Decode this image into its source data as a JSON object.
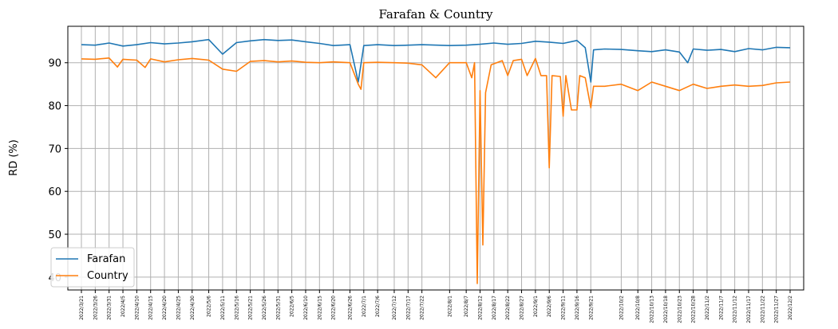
{
  "chart_data": {
    "type": "line",
    "title": "Farafan & Country",
    "xlabel": "",
    "ylabel": "RD (%)",
    "ylim": [
      37.0,
      98.5
    ],
    "yticks": [
      40,
      50,
      60,
      70,
      80,
      90
    ],
    "grid": true,
    "legend_position": "lower-left",
    "x_start_date": "2022/3/21",
    "x_end_date": "2022/12/2",
    "x_tick_labels": [
      "2022/3/21",
      "2022/3/26",
      "2022/3/31",
      "2022/4/5",
      "2022/4/10",
      "2022/4/15",
      "2022/4/20",
      "2022/4/25",
      "2022/4/30",
      "2022/5/6",
      "2022/5/11",
      "2022/5/16",
      "2022/5/21",
      "2022/5/26",
      "2022/5/31",
      "2022/6/5",
      "2022/6/10",
      "2022/6/15",
      "2022/6/20",
      "2022/6/26",
      "2022/7/1",
      "2022/7/6",
      "2022/7/12",
      "2022/7/17",
      "2022/7/22",
      "2022/8/1",
      "2022/8/7",
      "2022/8/12",
      "2022/8/17",
      "2022/8/22",
      "2022/8/27",
      "2022/9/1",
      "2022/9/6",
      "2022/9/11",
      "2022/9/16",
      "2022/9/21",
      "2022/10/2",
      "2022/10/8",
      "2022/10/13",
      "2022/10/18",
      "2022/10/23",
      "2022/10/28",
      "2022/11/2",
      "2022/11/7",
      "2022/11/12",
      "2022/11/17",
      "2022/11/22",
      "2022/11/27",
      "2022/12/2"
    ],
    "series": [
      {
        "name": "Farafan",
        "color": "#1f77b4",
        "points": [
          [
            "2022/3/21",
            94.2
          ],
          [
            "2022/3/26",
            94.1
          ],
          [
            "2022/3/31",
            94.6
          ],
          [
            "2022/4/5",
            93.9
          ],
          [
            "2022/4/10",
            94.2
          ],
          [
            "2022/4/15",
            94.7
          ],
          [
            "2022/4/20",
            94.4
          ],
          [
            "2022/4/25",
            94.6
          ],
          [
            "2022/4/30",
            94.9
          ],
          [
            "2022/5/6",
            95.4
          ],
          [
            "2022/5/11",
            92.0
          ],
          [
            "2022/5/16",
            94.7
          ],
          [
            "2022/5/21",
            95.1
          ],
          [
            "2022/5/26",
            95.4
          ],
          [
            "2022/5/31",
            95.2
          ],
          [
            "2022/6/5",
            95.3
          ],
          [
            "2022/6/10",
            94.9
          ],
          [
            "2022/6/15",
            94.5
          ],
          [
            "2022/6/20",
            94.0
          ],
          [
            "2022/6/26",
            94.2
          ],
          [
            "2022/6/29",
            85.5
          ],
          [
            "2022/7/1",
            94.0
          ],
          [
            "2022/7/6",
            94.2
          ],
          [
            "2022/7/12",
            94.0
          ],
          [
            "2022/7/17",
            94.1
          ],
          [
            "2022/7/22",
            94.2
          ],
          [
            "2022/8/1",
            94.0
          ],
          [
            "2022/8/7",
            94.1
          ],
          [
            "2022/8/12",
            94.3
          ],
          [
            "2022/8/17",
            94.6
          ],
          [
            "2022/8/22",
            94.3
          ],
          [
            "2022/8/27",
            94.5
          ],
          [
            "2022/9/1",
            95.0
          ],
          [
            "2022/9/6",
            94.8
          ],
          [
            "2022/9/11",
            94.5
          ],
          [
            "2022/9/16",
            95.2
          ],
          [
            "2022/9/19",
            93.5
          ],
          [
            "2022/9/21",
            85.5
          ],
          [
            "2022/9/22",
            93.0
          ],
          [
            "2022/9/26",
            93.2
          ],
          [
            "2022/10/2",
            93.1
          ],
          [
            "2022/10/8",
            92.8
          ],
          [
            "2022/10/13",
            92.6
          ],
          [
            "2022/10/18",
            93.0
          ],
          [
            "2022/10/23",
            92.5
          ],
          [
            "2022/10/26",
            90.0
          ],
          [
            "2022/10/28",
            93.2
          ],
          [
            "2022/11/2",
            92.9
          ],
          [
            "2022/11/7",
            93.1
          ],
          [
            "2022/11/12",
            92.6
          ],
          [
            "2022/11/17",
            93.3
          ],
          [
            "2022/11/22",
            93.0
          ],
          [
            "2022/11/27",
            93.6
          ],
          [
            "2022/12/2",
            93.5
          ]
        ]
      },
      {
        "name": "Country",
        "color": "#ff7f0e",
        "points": [
          [
            "2022/3/21",
            90.9
          ],
          [
            "2022/3/26",
            90.8
          ],
          [
            "2022/3/31",
            91.1
          ],
          [
            "2022/4/3",
            89.0
          ],
          [
            "2022/4/5",
            90.8
          ],
          [
            "2022/4/10",
            90.6
          ],
          [
            "2022/4/13",
            88.9
          ],
          [
            "2022/4/15",
            90.9
          ],
          [
            "2022/4/20",
            90.2
          ],
          [
            "2022/4/25",
            90.7
          ],
          [
            "2022/4/30",
            91.0
          ],
          [
            "2022/5/6",
            90.6
          ],
          [
            "2022/5/11",
            88.5
          ],
          [
            "2022/5/16",
            88.0
          ],
          [
            "2022/5/21",
            90.3
          ],
          [
            "2022/5/26",
            90.5
          ],
          [
            "2022/5/31",
            90.2
          ],
          [
            "2022/6/5",
            90.4
          ],
          [
            "2022/6/10",
            90.1
          ],
          [
            "2022/6/15",
            90.0
          ],
          [
            "2022/6/20",
            90.2
          ],
          [
            "2022/6/26",
            90.0
          ],
          [
            "2022/6/29",
            85.0
          ],
          [
            "2022/6/30",
            83.8
          ],
          [
            "2022/7/1",
            90.0
          ],
          [
            "2022/7/6",
            90.1
          ],
          [
            "2022/7/12",
            90.0
          ],
          [
            "2022/7/17",
            89.9
          ],
          [
            "2022/7/22",
            89.5
          ],
          [
            "2022/7/27",
            86.5
          ],
          [
            "2022/8/1",
            90.0
          ],
          [
            "2022/8/7",
            90.0
          ],
          [
            "2022/8/9",
            86.5
          ],
          [
            "2022/8/10",
            90.0
          ],
          [
            "2022/8/11",
            38.5
          ],
          [
            "2022/8/12",
            83.5
          ],
          [
            "2022/8/13",
            47.5
          ],
          [
            "2022/8/14",
            83.0
          ],
          [
            "2022/8/16",
            89.5
          ],
          [
            "2022/8/20",
            90.5
          ],
          [
            "2022/8/22",
            87.0
          ],
          [
            "2022/8/24",
            90.5
          ],
          [
            "2022/8/27",
            90.8
          ],
          [
            "2022/8/29",
            87.0
          ],
          [
            "2022/9/1",
            91.0
          ],
          [
            "2022/9/3",
            87.0
          ],
          [
            "2022/9/5",
            87.0
          ],
          [
            "2022/9/6",
            65.5
          ],
          [
            "2022/9/7",
            87.0
          ],
          [
            "2022/9/10",
            86.8
          ],
          [
            "2022/9/11",
            77.5
          ],
          [
            "2022/9/12",
            87.0
          ],
          [
            "2022/9/14",
            79.0
          ],
          [
            "2022/9/16",
            79.0
          ],
          [
            "2022/9/17",
            87.0
          ],
          [
            "2022/9/19",
            86.5
          ],
          [
            "2022/9/21",
            79.5
          ],
          [
            "2022/9/22",
            84.5
          ],
          [
            "2022/9/26",
            84.5
          ],
          [
            "2022/10/2",
            85.0
          ],
          [
            "2022/10/8",
            83.5
          ],
          [
            "2022/10/13",
            85.5
          ],
          [
            "2022/10/18",
            84.5
          ],
          [
            "2022/10/23",
            83.5
          ],
          [
            "2022/10/28",
            85.0
          ],
          [
            "2022/11/2",
            84.0
          ],
          [
            "2022/11/7",
            84.5
          ],
          [
            "2022/11/12",
            84.8
          ],
          [
            "2022/11/17",
            84.5
          ],
          [
            "2022/11/22",
            84.7
          ],
          [
            "2022/11/27",
            85.3
          ],
          [
            "2022/12/2",
            85.5
          ]
        ]
      }
    ]
  }
}
